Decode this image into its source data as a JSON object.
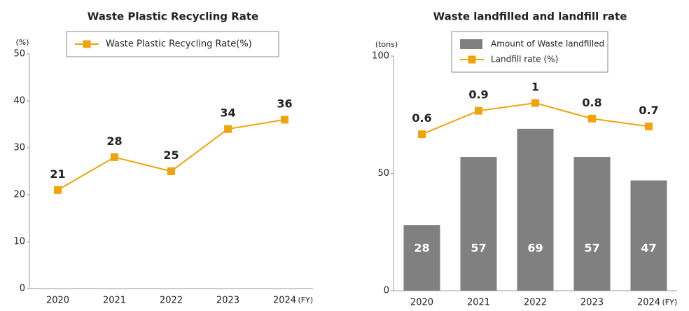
{
  "chart_data": [
    {
      "type": "line",
      "title": "Waste Plastic Recycling Rate",
      "y_label": "(%)",
      "x_unit": "(FY)",
      "categories": [
        "2020",
        "2021",
        "2022",
        "2023",
        "2024"
      ],
      "series": [
        {
          "name": "Waste Plastic Recycling Rate(%)",
          "color": "#f0a30a",
          "values": [
            21,
            28,
            25,
            34,
            36
          ]
        }
      ],
      "ylim": [
        0,
        50
      ],
      "yticks": [
        0,
        10,
        20,
        30,
        40,
        50
      ],
      "grid": false,
      "legend": "top"
    },
    {
      "type": "bar",
      "title": "Waste landfilled and landfill rate",
      "y_label": "(tons)",
      "x_unit": "(FY)",
      "categories": [
        "2020",
        "2021",
        "2022",
        "2023",
        "2024"
      ],
      "series": [
        {
          "name": "Amount of Waste landfilled",
          "type": "bar",
          "color": "#808080",
          "values": [
            28,
            57,
            69,
            57,
            47
          ]
        },
        {
          "name": "Landfill rate (%)",
          "type": "line",
          "axis": "y2",
          "color": "#f0a30a",
          "values": [
            0.6,
            0.9,
            1.0,
            0.8,
            0.7
          ]
        }
      ],
      "ylim": [
        0,
        100
      ],
      "yticks": [
        0,
        50,
        100
      ],
      "y2lim": [
        -1.4,
        1.6
      ],
      "grid": false,
      "legend": "top-right"
    }
  ]
}
